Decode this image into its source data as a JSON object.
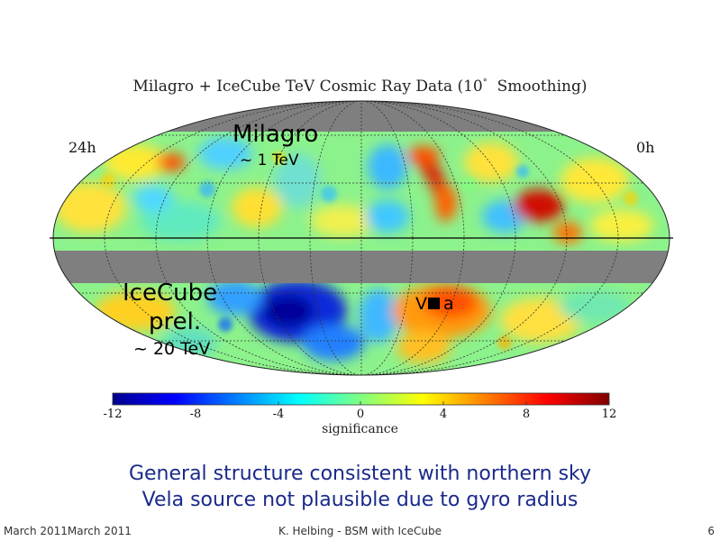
{
  "map": {
    "title": "Milagro + IceCube TeV Cosmic Ray Data (10",
    "title_degree": "°",
    "title_suffix": "Smoothing)",
    "ra_left": "24h",
    "ra_right": "0h",
    "milagro_label": "Milagro",
    "milagro_energy": "~ 1 TeV",
    "icecube_label_line1": "IceCube",
    "icecube_label_line2": "prel.",
    "icecube_energy": "~ 20 TeV",
    "vela_label_start": "V",
    "vela_label_end": "a"
  },
  "colorbar": {
    "ticks": [
      "-12",
      "-8",
      "-4",
      "0",
      "4",
      "8",
      "12"
    ],
    "label": "significance",
    "colors": [
      "#00008f",
      "#0000ff",
      "#0080ff",
      "#00ffff",
      "#80ff80",
      "#ffff00",
      "#ff8000",
      "#ff0000",
      "#800000"
    ]
  },
  "caption": {
    "line1": "General structure consistent with northern sky",
    "line2": "Vela source not plausible due to gyro radius"
  },
  "footer": {
    "left": "March 2011March 2011",
    "center": "K. Helbing - BSM with IceCube",
    "right": "6"
  }
}
